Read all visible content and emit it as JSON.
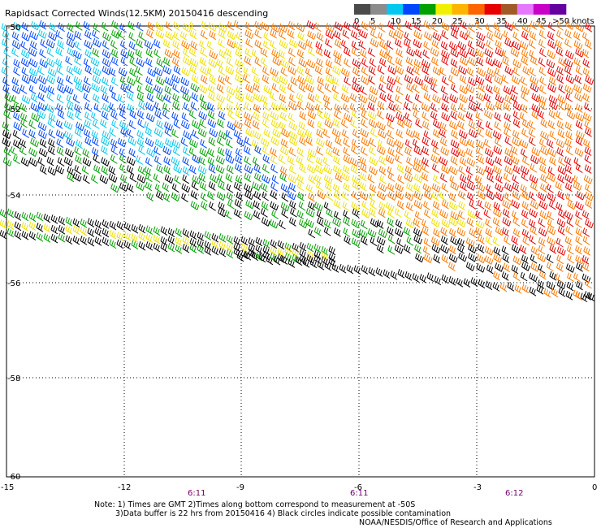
{
  "title": "Rapidsact Corrected Winds(12.5KM) 20150416 descending",
  "legend": {
    "colors": [
      "#4a4a4a",
      "#8c8c8c",
      "#00c8f0",
      "#0046ff",
      "#00a000",
      "#f0f000",
      "#ffb400",
      "#ff6400",
      "#e60000",
      "#a05a28",
      "#e678ff",
      "#c800c8",
      "#6400a0"
    ],
    "labels": [
      "0",
      "5",
      "10",
      "15",
      "20",
      "25",
      "30",
      "35",
      "40",
      "45",
      ">50 knots"
    ]
  },
  "axes": {
    "y_ticks": [
      "-50",
      "-52",
      "-54",
      "-56",
      "-58",
      "-60"
    ],
    "x_ticks": [
      "-15",
      "-12",
      "-9",
      "-6",
      "-3",
      "0"
    ],
    "time_labels": [
      "6:11",
      "6:11",
      "6:12"
    ]
  },
  "wind_colors": {
    "cyan": "#00c8f0",
    "blue": "#0046ff",
    "green": "#00a000",
    "yellow": "#f0e000",
    "orange": "#ff7800",
    "red": "#e60000",
    "black": "#000000"
  },
  "notes": {
    "line1": "Note: 1) Times are GMT 2)Times along bottom correspond to measurement at -50S",
    "line2": "3)Data buffer is 22 hrs from 20150416 4) Black circles indicate possible contamination",
    "line3": "NOAA/NESDIS/Office of Research and Applications"
  }
}
